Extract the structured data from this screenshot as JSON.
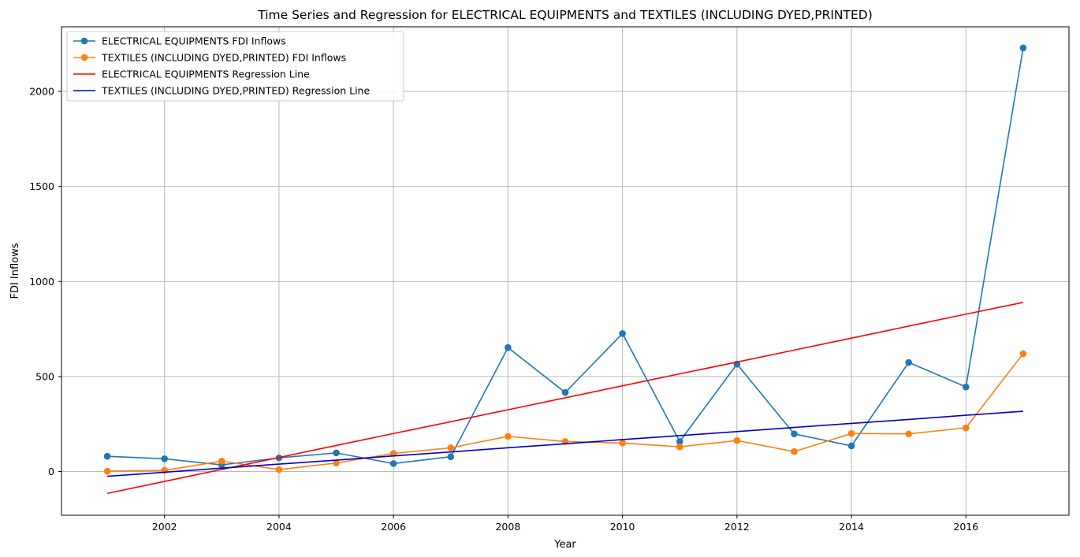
{
  "chart_data": {
    "type": "line",
    "title": "Time Series and Regression for ELECTRICAL EQUIPMENTS and TEXTILES (INCLUDING DYED,PRINTED)",
    "xlabel": "Year",
    "ylabel": "FDI Inflows",
    "xlim": [
      2000.2,
      2017.8
    ],
    "ylim": [
      -230,
      2340
    ],
    "xticks": [
      2002,
      2004,
      2006,
      2008,
      2010,
      2012,
      2014,
      2016
    ],
    "yticks": [
      0,
      500,
      1000,
      1500,
      2000
    ],
    "grid": true,
    "legend_position": "upper-left",
    "x": [
      2001,
      2002,
      2003,
      2004,
      2005,
      2006,
      2007,
      2008,
      2009,
      2010,
      2011,
      2012,
      2013,
      2014,
      2015,
      2016,
      2017
    ],
    "series": [
      {
        "name": "ELECTRICAL EQUIPMENTS FDI Inflows",
        "kind": "line-marker",
        "color": "#1f77b4",
        "values": [
          80,
          67,
          35,
          72,
          98,
          42,
          78,
          652,
          416,
          726,
          158,
          565,
          198,
          135,
          574,
          445,
          2229
        ]
      },
      {
        "name": "TEXTILES (INCLUDING DYED,PRINTED) FDI Inflows",
        "kind": "line-marker",
        "color": "#ff7f0e",
        "values": [
          2,
          6,
          55,
          10,
          45,
          95,
          125,
          185,
          158,
          150,
          130,
          163,
          105,
          200,
          198,
          230,
          620
        ]
      },
      {
        "name": "ELECTRICAL EQUIPMENTS Regression Line",
        "kind": "line",
        "color": "#ff0000",
        "values": [
          -115,
          -52,
          11,
          74,
          137,
          200,
          262,
          325,
          388,
          451,
          514,
          576,
          639,
          702,
          765,
          828,
          890
        ]
      },
      {
        "name": "TEXTILES (INCLUDING DYED,PRINTED) Regression Line",
        "kind": "line",
        "color": "#0000cd",
        "values": [
          -25,
          -4,
          18,
          39,
          60,
          82,
          103,
          125,
          146,
          168,
          189,
          210,
          232,
          253,
          274,
          296,
          317
        ]
      }
    ]
  }
}
